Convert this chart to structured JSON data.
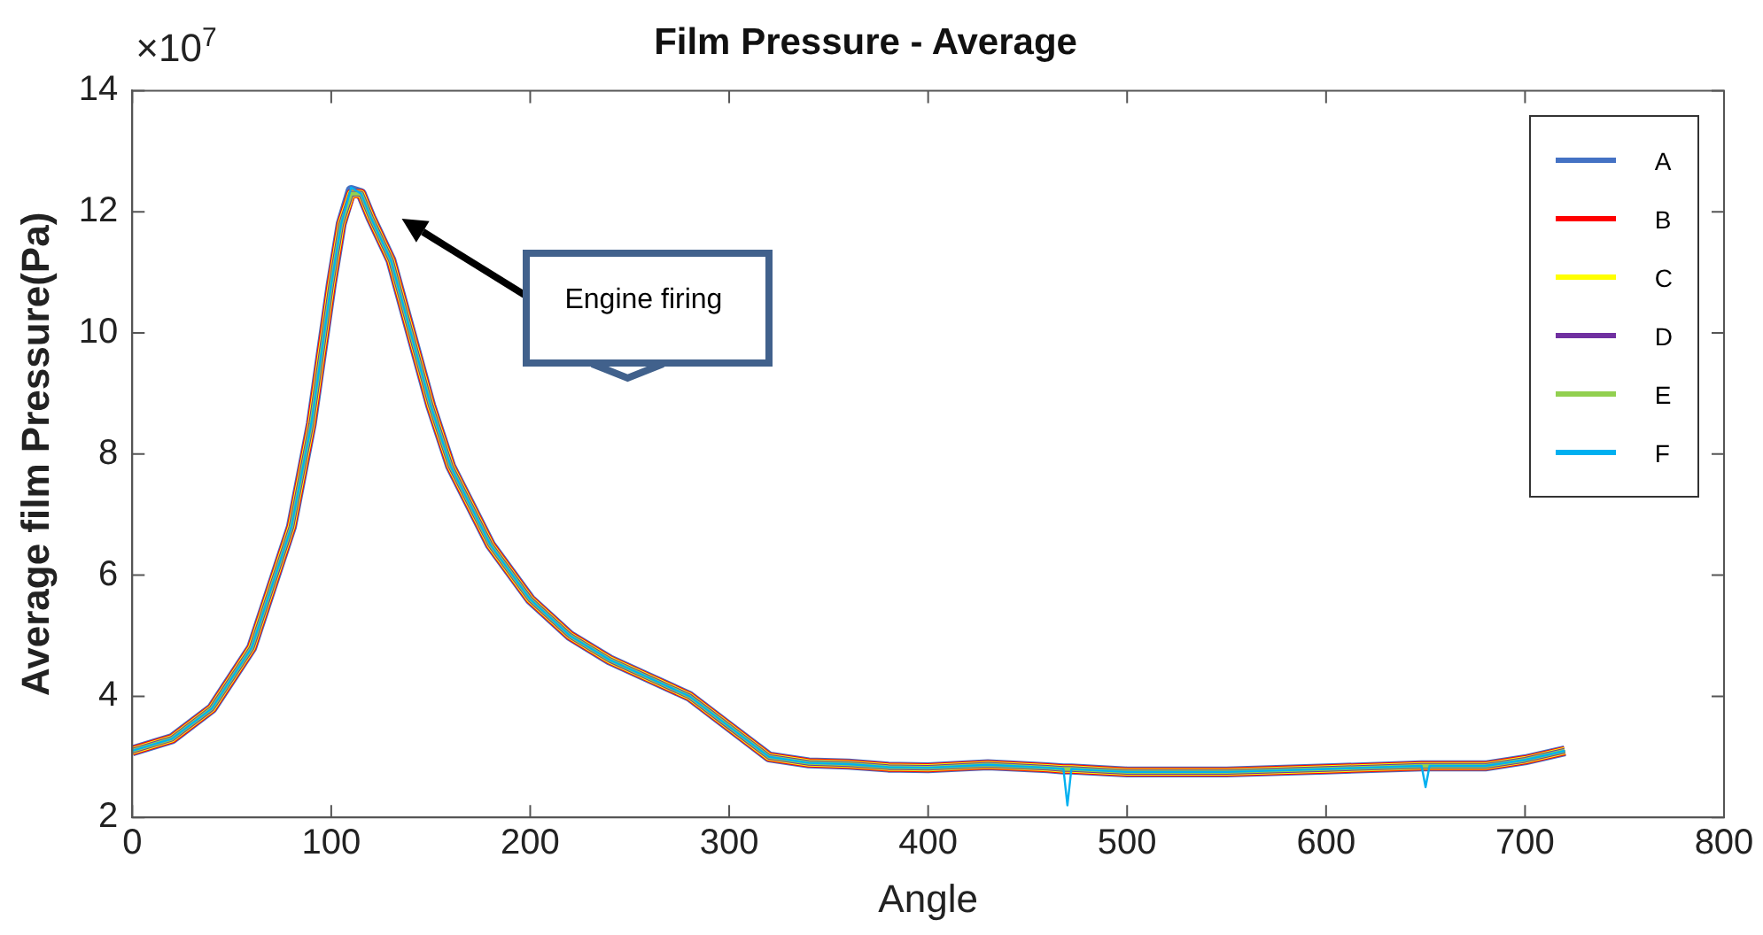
{
  "chart_data": {
    "type": "line",
    "title": "Film Pressure - Average",
    "xlabel": "Angle",
    "ylabel": "Average film Pressure(Pa)",
    "x": [
      0,
      20,
      40,
      60,
      80,
      90,
      100,
      105,
      110,
      115,
      120,
      130,
      140,
      150,
      160,
      180,
      200,
      220,
      240,
      260,
      280,
      300,
      320,
      340,
      360,
      380,
      400,
      430,
      460,
      468,
      470,
      472,
      500,
      550,
      600,
      648,
      650,
      652,
      680,
      700,
      720
    ],
    "series": [
      {
        "name": "A",
        "color": "#4472c4",
        "values": [
          3.1,
          3.3,
          3.8,
          4.8,
          6.8,
          8.5,
          10.8,
          11.8,
          12.35,
          12.3,
          11.9,
          11.2,
          10.0,
          8.8,
          7.8,
          6.5,
          5.6,
          5.0,
          4.6,
          4.3,
          4.0,
          3.5,
          3.0,
          2.9,
          2.88,
          2.83,
          2.82,
          2.87,
          2.82,
          2.8,
          2.8,
          2.8,
          2.75,
          2.75,
          2.8,
          2.85,
          2.85,
          2.85,
          2.85,
          2.95,
          3.1
        ]
      },
      {
        "name": "B",
        "color": "#ff0000",
        "values": [
          3.1,
          3.3,
          3.8,
          4.8,
          6.8,
          8.5,
          10.8,
          11.8,
          12.3,
          12.3,
          11.9,
          11.2,
          10.0,
          8.8,
          7.8,
          6.5,
          5.6,
          5.0,
          4.6,
          4.3,
          4.0,
          3.5,
          3.0,
          2.9,
          2.88,
          2.83,
          2.82,
          2.87,
          2.82,
          2.8,
          2.8,
          2.8,
          2.75,
          2.75,
          2.8,
          2.85,
          2.85,
          2.85,
          2.85,
          2.95,
          3.1
        ]
      },
      {
        "name": "C",
        "color": "#ffff00",
        "values": [
          3.1,
          3.3,
          3.8,
          4.8,
          6.8,
          8.5,
          10.8,
          11.8,
          12.3,
          12.3,
          11.9,
          11.2,
          10.0,
          8.8,
          7.8,
          6.5,
          5.6,
          5.0,
          4.6,
          4.3,
          4.0,
          3.5,
          3.0,
          2.9,
          2.88,
          2.83,
          2.82,
          2.87,
          2.82,
          2.8,
          2.8,
          2.8,
          2.75,
          2.75,
          2.8,
          2.85,
          2.85,
          2.85,
          2.85,
          2.95,
          3.1
        ]
      },
      {
        "name": "D",
        "color": "#7030a0",
        "values": [
          3.1,
          3.3,
          3.8,
          4.8,
          6.8,
          8.5,
          10.8,
          11.8,
          12.3,
          12.3,
          11.9,
          11.2,
          10.0,
          8.8,
          7.8,
          6.5,
          5.6,
          5.0,
          4.6,
          4.3,
          4.0,
          3.5,
          3.0,
          2.9,
          2.88,
          2.83,
          2.82,
          2.87,
          2.82,
          2.8,
          2.8,
          2.8,
          2.75,
          2.75,
          2.8,
          2.85,
          2.85,
          2.85,
          2.85,
          2.95,
          3.1
        ]
      },
      {
        "name": "E",
        "color": "#92d050",
        "values": [
          3.1,
          3.3,
          3.8,
          4.8,
          6.8,
          8.5,
          10.8,
          11.8,
          12.3,
          12.3,
          11.9,
          11.2,
          10.0,
          8.8,
          7.8,
          6.5,
          5.6,
          5.0,
          4.6,
          4.3,
          4.0,
          3.5,
          3.0,
          2.9,
          2.88,
          2.83,
          2.82,
          2.87,
          2.82,
          2.8,
          2.8,
          2.8,
          2.75,
          2.75,
          2.8,
          2.85,
          2.85,
          2.85,
          2.85,
          2.95,
          3.1
        ]
      },
      {
        "name": "F",
        "color": "#00b0f0",
        "values": [
          3.1,
          3.3,
          3.8,
          4.8,
          6.8,
          8.5,
          10.8,
          11.8,
          12.4,
          12.3,
          11.9,
          11.2,
          10.0,
          8.8,
          7.8,
          6.5,
          5.6,
          5.0,
          4.6,
          4.3,
          4.0,
          3.5,
          3.0,
          2.9,
          2.88,
          2.83,
          2.82,
          2.87,
          2.82,
          2.8,
          2.2,
          2.8,
          2.75,
          2.75,
          2.8,
          2.85,
          2.5,
          2.85,
          2.85,
          2.95,
          3.1
        ]
      }
    ],
    "xlim": [
      0,
      800
    ],
    "xticks": [
      0,
      100,
      200,
      300,
      400,
      500,
      600,
      700,
      800
    ],
    "ylim": [
      2,
      14
    ],
    "yticks": [
      2,
      4,
      6,
      8,
      10,
      12,
      14
    ],
    "annotations": [
      "×10$^{7}$",
      "Engine firing"
    ],
    "legend": "top right",
    "grid": false,
    "marker": "none",
    "line_style": "solid"
  }
}
